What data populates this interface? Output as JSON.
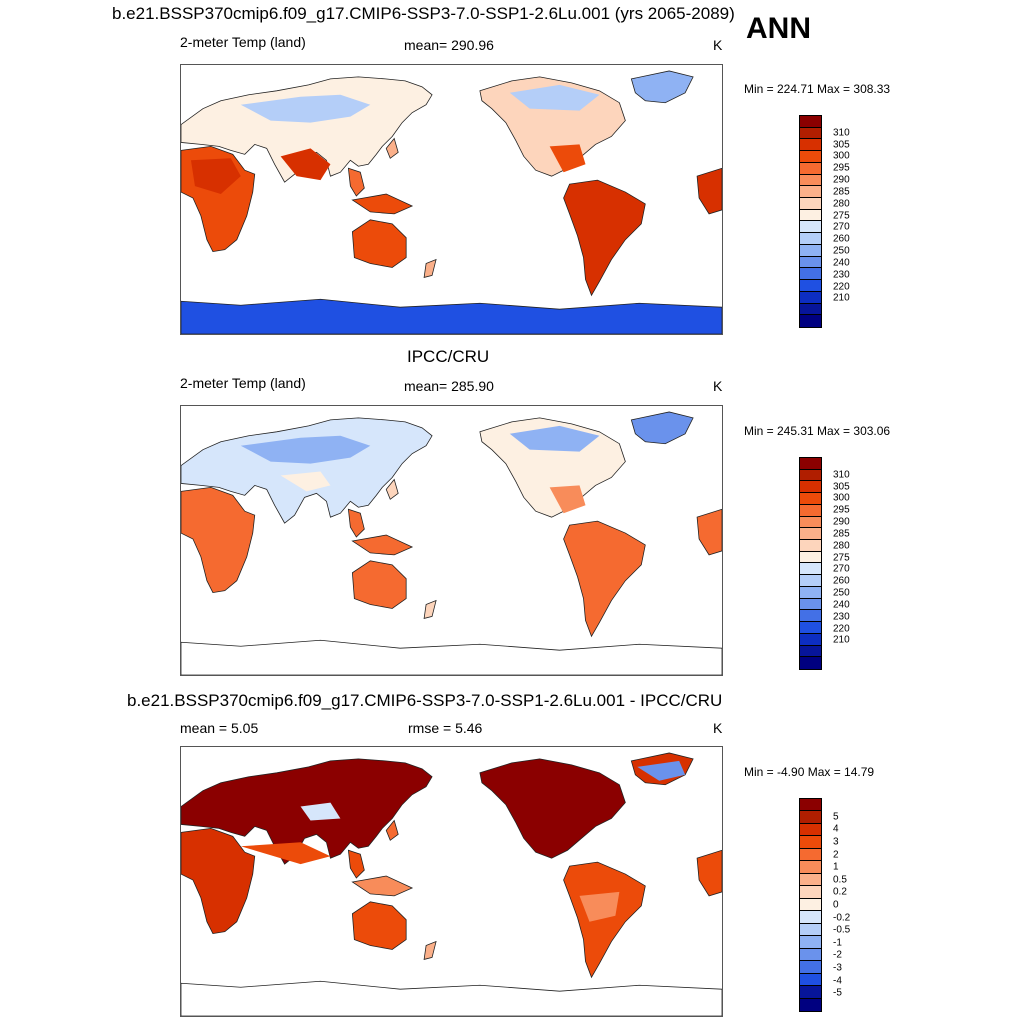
{
  "season": "ANN",
  "panels": [
    {
      "title": "b.e21.BSSP370cmip6.f09_g17.CMIP6-SSP3-7.0-SSP1-2.6Lu.001 (yrs 2065-2089)",
      "left_label": "2-meter Temp (land)",
      "center_label": "mean= 290.96",
      "right_label": "K",
      "minmax": "Min = 224.71 Max = 308.33",
      "field": "model"
    },
    {
      "title": "IPCC/CRU",
      "left_label": "2-meter Temp (land)",
      "center_label": "mean= 285.90",
      "right_label": "K",
      "minmax": "Min = 245.31 Max = 303.06",
      "field": "obs"
    },
    {
      "title": "b.e21.BSSP370cmip6.f09_g17.CMIP6-SSP3-7.0-SSP1-2.6Lu.001 - IPCC/CRU",
      "left_label": "mean =   5.05",
      "center_label": "rmse =   5.46",
      "right_label": "K",
      "minmax": "Min =  -4.90 Max =  14.79",
      "field": "diff"
    }
  ],
  "colorbars": {
    "temp": {
      "labels": [
        "310",
        "305",
        "300",
        "295",
        "290",
        "285",
        "280",
        "275",
        "270",
        "260",
        "250",
        "240",
        "230",
        "220",
        "210"
      ],
      "colors": [
        "#8b0000",
        "#b01e00",
        "#d73000",
        "#ec4b0a",
        "#f56a30",
        "#f88c5a",
        "#fbb08a",
        "#fdd5bc",
        "#fdf0e2",
        "#d6e6fb",
        "#b4cef8",
        "#8fb2f3",
        "#6a92ec",
        "#4370e6",
        "#1f50e2",
        "#0d2ec2",
        "#07159a",
        "#000080"
      ]
    },
    "diff": {
      "labels": [
        "5",
        "4",
        "3",
        "2",
        "1",
        "0.5",
        "0.2",
        "0",
        "-0.2",
        "-0.5",
        "-1",
        "-2",
        "-3",
        "-4",
        "-5"
      ],
      "colors": [
        "#8b0000",
        "#b01e00",
        "#d73000",
        "#ec4b0a",
        "#f56a30",
        "#f88c5a",
        "#fbb08a",
        "#fdd5bc",
        "#fdf0e2",
        "#d6e6fb",
        "#b4cef8",
        "#8fb2f3",
        "#6a92ec",
        "#4370e6",
        "#1f50e2",
        "#07159a",
        "#000080"
      ]
    }
  }
}
